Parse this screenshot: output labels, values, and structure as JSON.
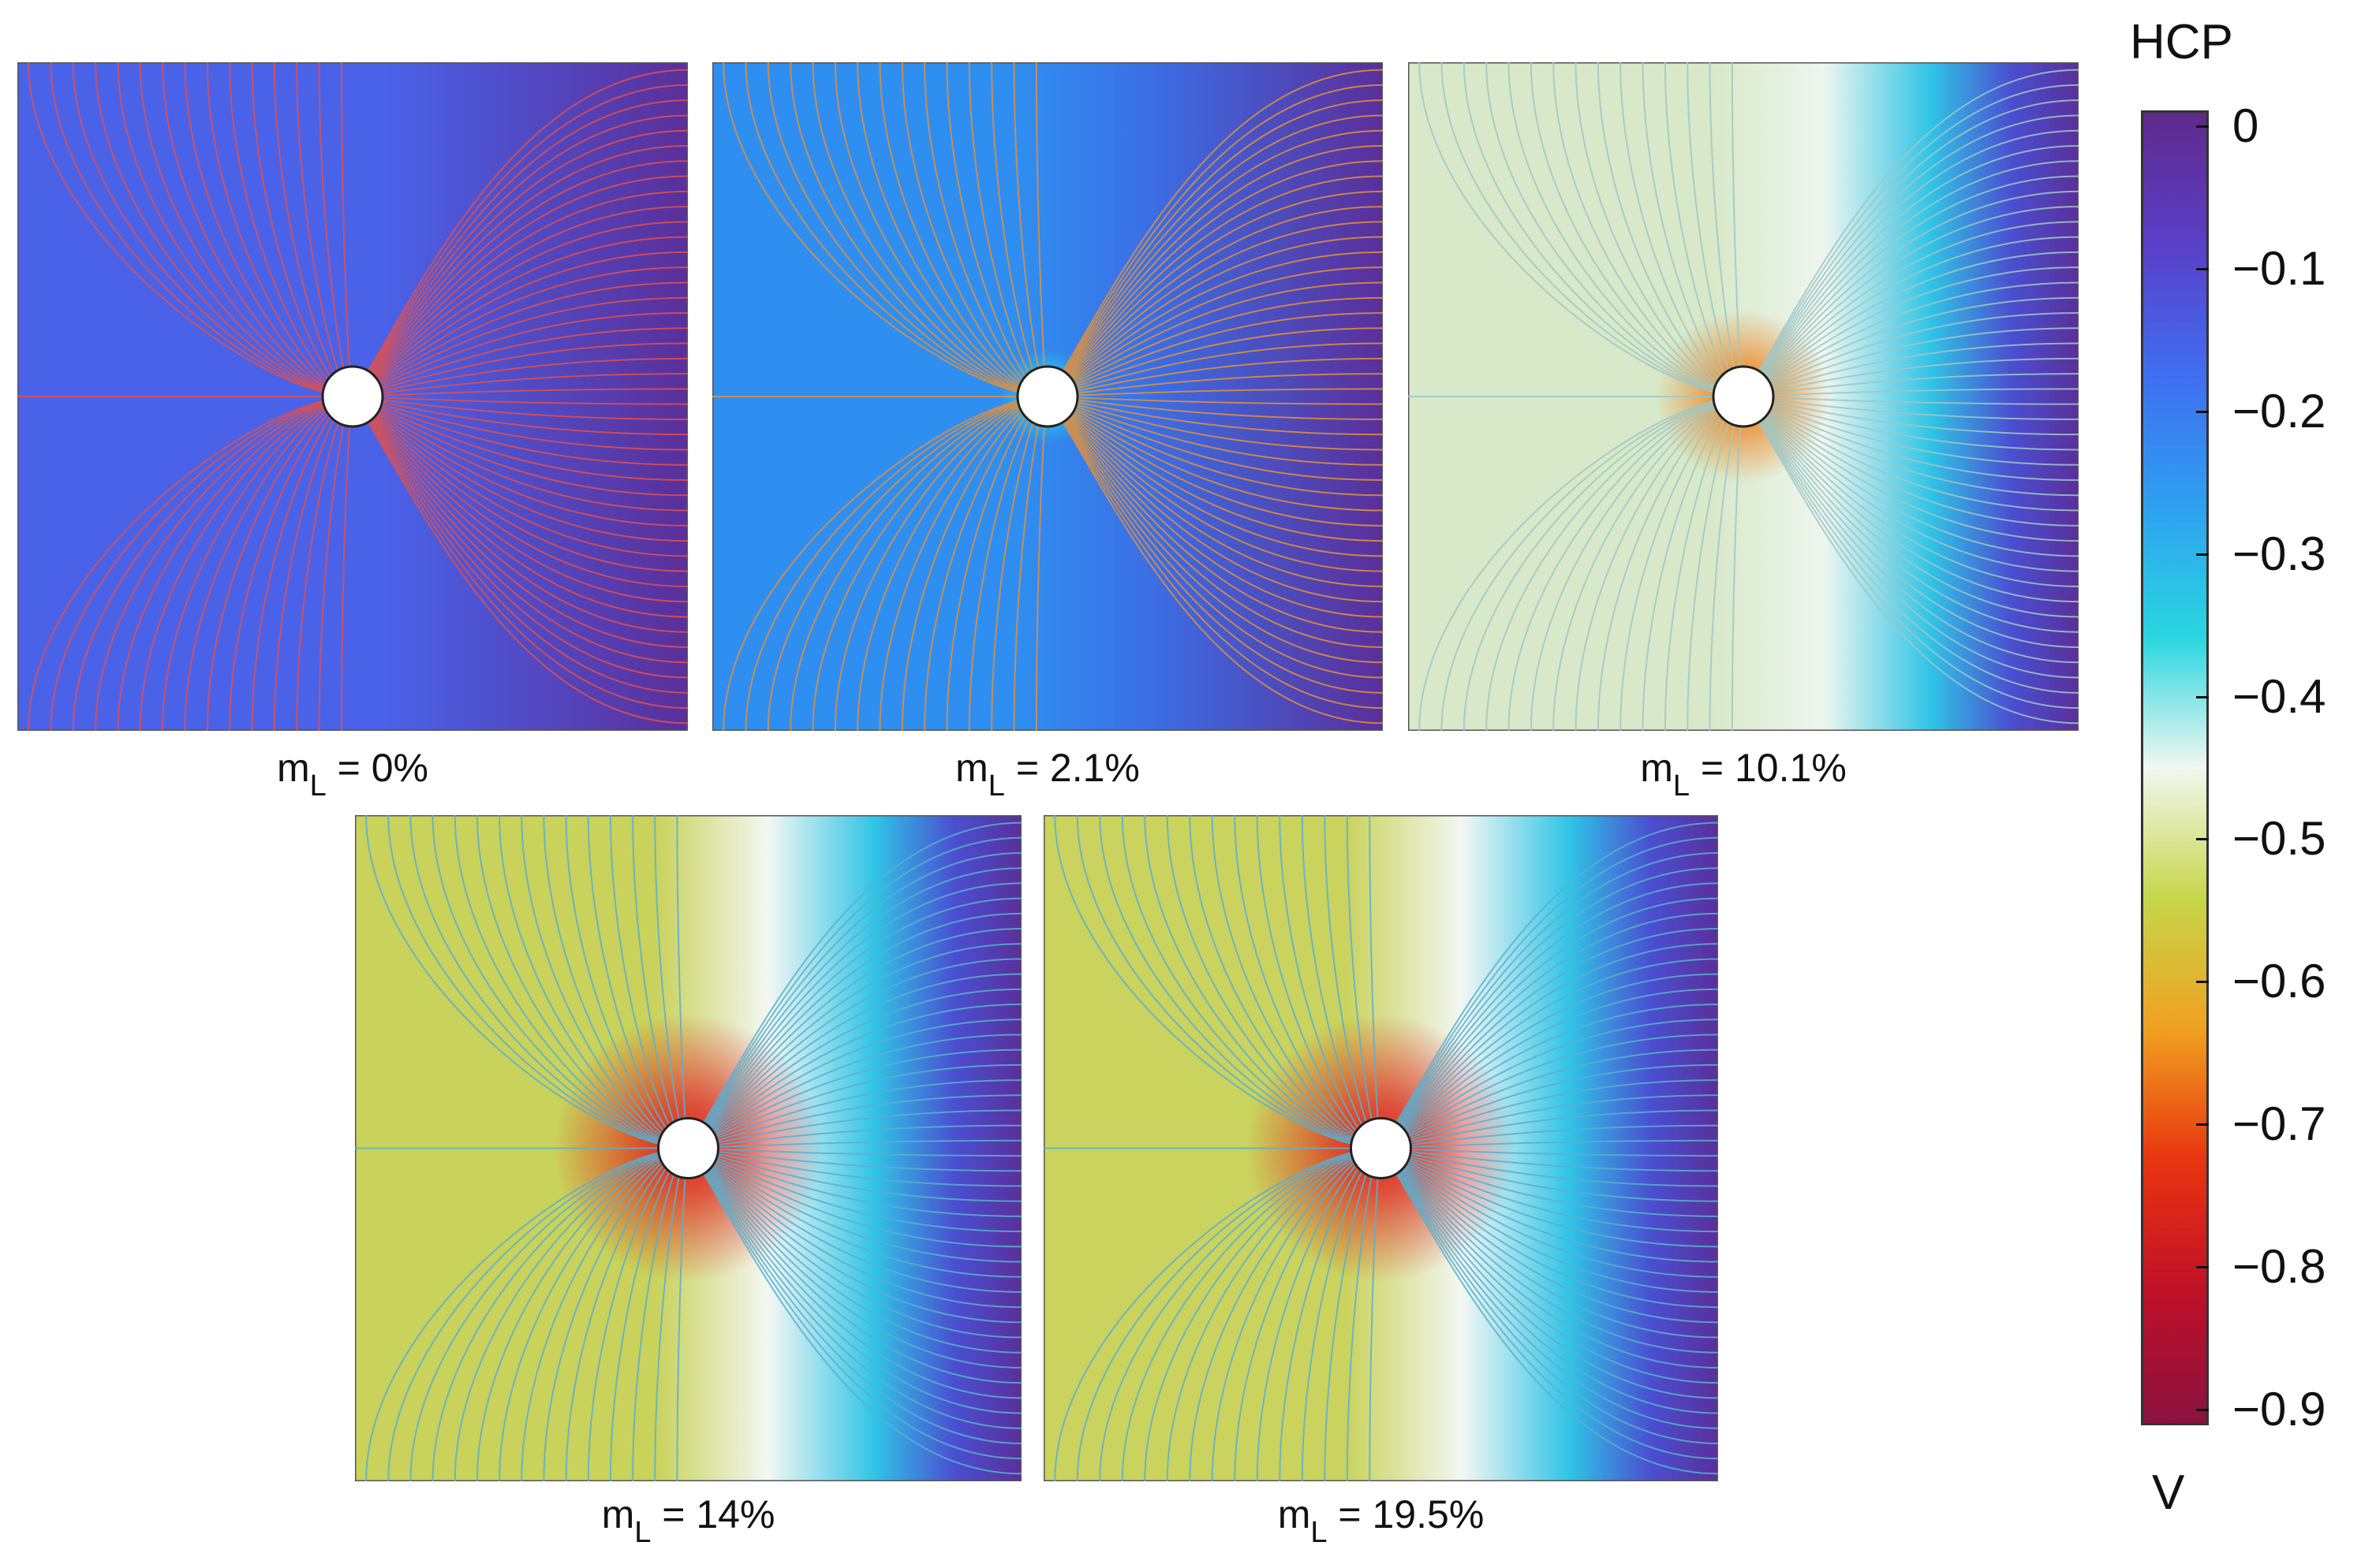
{
  "panels": [
    {
      "id": "p1",
      "caption_base": "m",
      "caption_sub": "L",
      "caption_value": " = 0%",
      "left": "#4a62e8",
      "mid": "#4a62e8",
      "right": "#5a2f9a",
      "ring": "none",
      "line_color": "#e05050",
      "hole": 0.5
    },
    {
      "id": "p2",
      "caption_base": "m",
      "caption_sub": "L",
      "caption_value": " = 2.1%",
      "left": "#2f8ff0",
      "mid": "#3b6fe6",
      "right": "#5a2f9a",
      "ring": "cyan",
      "line_color": "#e09040",
      "hole": 0.5
    },
    {
      "id": "p3",
      "caption_base": "m",
      "caption_sub": "L",
      "caption_value": " = 10.1%",
      "left": "#d7e9c8",
      "mid": "#eef6ee",
      "right": "#5a2f9a",
      "ring": "orange",
      "line_color": "#9fc7c6",
      "hole": 0.5
    },
    {
      "id": "p4",
      "caption_base": "m",
      "caption_sub": "L",
      "caption_value": " = 14%",
      "left": "#c9d25a",
      "mid": "#f3f7f2",
      "right": "#5a2f9a",
      "ring": "red",
      "line_color": "#5ab0d0",
      "hole": 0.5
    },
    {
      "id": "p5",
      "caption_base": "m",
      "caption_sub": "L",
      "caption_value": " = 19.5%",
      "left": "#cad35e",
      "mid": "#f3f7f2",
      "right": "#5a2f9a",
      "ring": "red",
      "line_color": "#5ab0d0",
      "hole": 0.5
    }
  ],
  "colorbar": {
    "title": "HCP",
    "unit": "V",
    "ticks": [
      "0",
      "−0.1",
      "−0.2",
      "−0.3",
      "−0.4",
      "−0.5",
      "−0.6",
      "−0.7",
      "−0.8",
      "−0.9"
    ],
    "stops": [
      "#5e2a8a",
      "#5a3fc8",
      "#3f6ef0",
      "#2fa0f0",
      "#29d6e0",
      "#f2f7f0",
      "#c6d64a",
      "#f0a020",
      "#e8340f",
      "#c01028",
      "#8a1240"
    ]
  }
}
